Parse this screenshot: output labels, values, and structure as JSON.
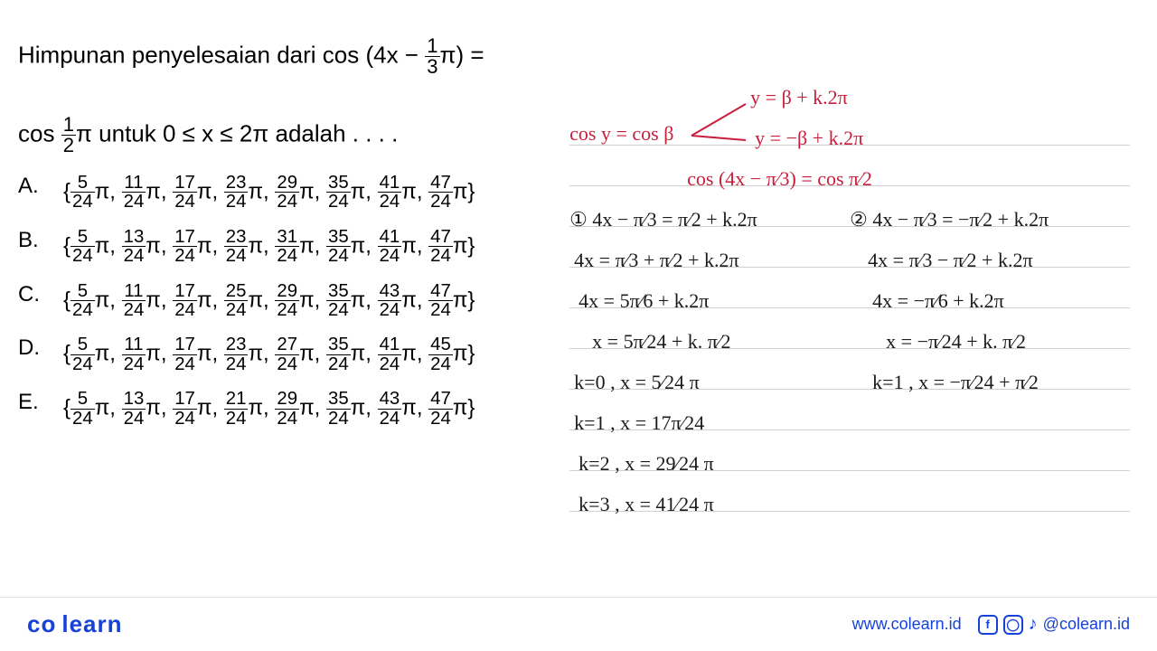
{
  "question": {
    "line1_prefix": "Himpunan penyelesaian dari cos (4x − ",
    "line1_frac_num": "1",
    "line1_frac_den": "3",
    "line1_suffix": "π) =",
    "line2_prefix": "cos ",
    "line2_frac_num": "1",
    "line2_frac_den": "2",
    "line2_suffix": "π untuk 0 ≤ x ≤ 2π adalah . . . ."
  },
  "options": {
    "A": [
      "5",
      "11",
      "17",
      "23",
      "29",
      "35",
      "41",
      "47"
    ],
    "B": [
      "5",
      "13",
      "17",
      "23",
      "31",
      "35",
      "41",
      "47"
    ],
    "C": [
      "5",
      "11",
      "17",
      "25",
      "29",
      "35",
      "43",
      "47"
    ],
    "D": [
      "5",
      "11",
      "17",
      "23",
      "27",
      "35",
      "41",
      "45"
    ],
    "E": [
      "5",
      "13",
      "17",
      "21",
      "29",
      "35",
      "43",
      "47"
    ]
  },
  "denom": "24",
  "handwriting": {
    "red": {
      "lhs": "cos y = cos β",
      "branch1": "y = β + k.2π",
      "branch2": "y = −β + k.2π",
      "eq": "cos (4x − π⁄3) = cos π⁄2"
    },
    "col1": [
      "① 4x − π⁄3 = π⁄2 + k.2π",
      "4x = π⁄3 + π⁄2 + k.2π",
      "4x = 5π⁄6 + k.2π",
      "x = 5π⁄24 + k. π⁄2",
      "k=0 , x = 5⁄24 π",
      "k=1 , x = 17π⁄24",
      "k=2 , x = 29⁄24 π",
      "k=3 , x = 41⁄24 π"
    ],
    "col2": [
      "② 4x − π⁄3 = −π⁄2 + k.2π",
      "4x = π⁄3 − π⁄2 + k.2π",
      "4x = −π⁄6 + k.2π",
      "x = −π⁄24 + k. π⁄2",
      "k=1 , x = −π⁄24 + π⁄2"
    ]
  },
  "footer": {
    "logo1": "co",
    "logo2": "learn",
    "url": "www.colearn.id",
    "handle": "@colearn.id"
  },
  "colors": {
    "red": "#c81e3c",
    "blue": "#1642d8",
    "text": "#000000"
  }
}
